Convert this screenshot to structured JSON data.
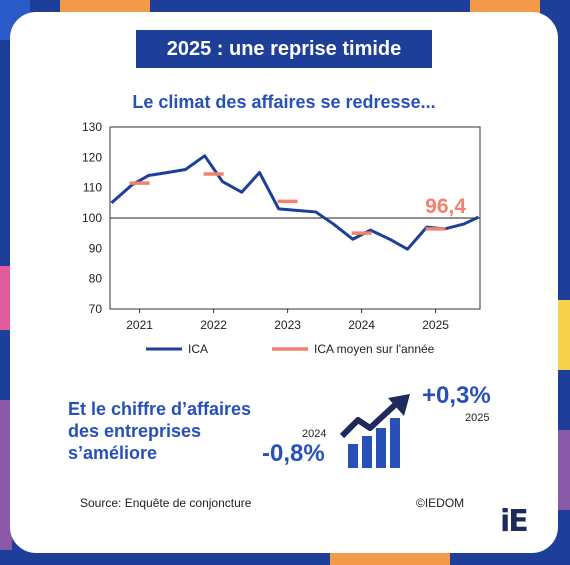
{
  "banner_title": "2025 : une reprise timide",
  "chart_data": {
    "type": "line",
    "title": "Le climat des affaires se redresse...",
    "ylim": [
      70,
      130
    ],
    "yticks": [
      70,
      80,
      90,
      100,
      110,
      120,
      130
    ],
    "xlim": [
      2020.6,
      2025.6
    ],
    "xticks": [
      {
        "value": 2021,
        "label": "2021"
      },
      {
        "value": 2022,
        "label": "2022"
      },
      {
        "value": 2023,
        "label": "2023"
      },
      {
        "value": 2024,
        "label": "2024"
      },
      {
        "value": 2025,
        "label": "2025"
      }
    ],
    "reference_line": 100,
    "grid": false,
    "legend_position": "bottom",
    "series": [
      {
        "name": "ICA",
        "color": "#1d3f9a",
        "style": "line",
        "x": [
          2020.62,
          2020.9,
          2021.12,
          2021.38,
          2021.62,
          2021.88,
          2022.12,
          2022.38,
          2022.62,
          2022.88,
          2023.12,
          2023.38,
          2023.62,
          2023.88,
          2024.12,
          2024.38,
          2024.62,
          2024.88,
          2025.12,
          2025.38,
          2025.58
        ],
        "values": [
          105,
          111,
          114,
          115,
          116,
          120.5,
          112,
          108.5,
          115,
          103,
          102.5,
          102,
          98,
          93,
          96,
          93,
          89.7,
          97,
          96.4,
          98,
          100.3
        ]
      },
      {
        "name": "ICA moyen sur l'année",
        "color": "#f2826e",
        "style": "annual-dash",
        "x": [
          2021,
          2022,
          2023,
          2024,
          2025
        ],
        "values": [
          111.5,
          114.5,
          105.5,
          95,
          96.4
        ]
      }
    ],
    "annotation": {
      "text": "96,4",
      "x": 2025,
      "y": 96.4,
      "color": "#f2826e"
    }
  },
  "business_text": [
    "Et le chiffre d’affaires",
    "des entreprises",
    "s’améliore"
  ],
  "kpis": {
    "previous": {
      "year": "2024",
      "value": "-0,8%"
    },
    "current": {
      "year": "2025",
      "value": "+0,3%"
    }
  },
  "icons": {
    "growth": "rising-bar-chart-arrow-icon"
  },
  "source": "Source: Enquête de conjoncture",
  "credit": "©IEDOM",
  "logo": "iE",
  "colors": {
    "navy": "#1d3f9a",
    "accent_blue": "#2751b8",
    "salmon": "#f2826e"
  }
}
